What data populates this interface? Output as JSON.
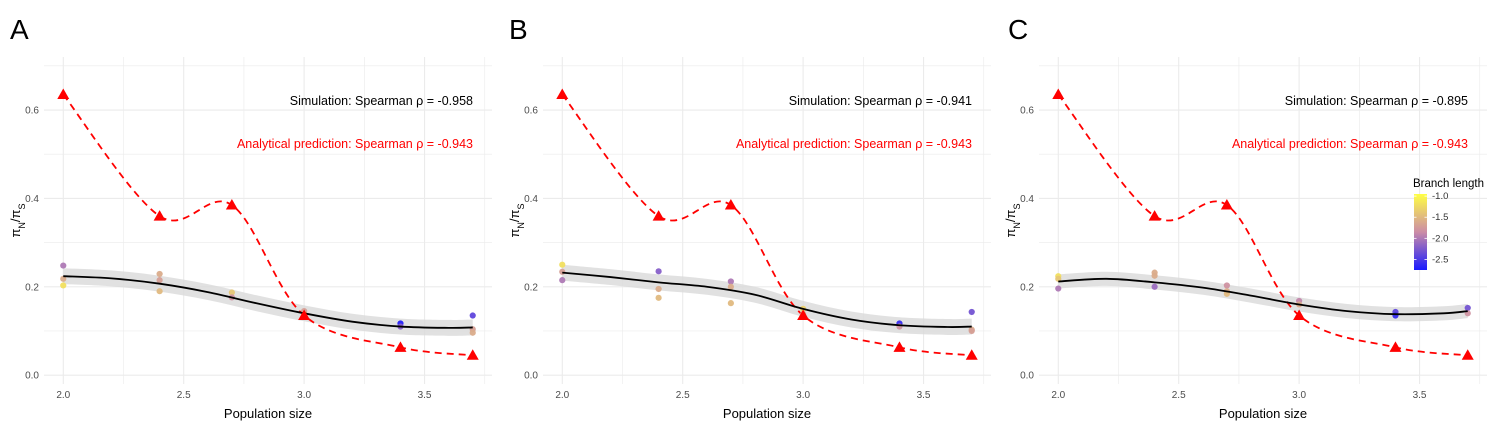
{
  "chart_data": [
    {
      "panel_label": "A",
      "type": "scatter",
      "xlabel": "Population size",
      "ylabel_main": "π",
      "ylabel_sub_n": "N",
      "ylabel_sep": "/",
      "ylabel_sub_s": "S",
      "xlim": [
        1.92,
        3.78
      ],
      "ylim": [
        -0.02,
        0.72
      ],
      "x_ticks": [
        "2.0",
        "2.5",
        "3.0",
        "3.5"
      ],
      "y_ticks": [
        "0.0",
        "0.2",
        "0.4",
        "0.6"
      ],
      "grid": true,
      "annotation_simulation": "Simulation: Spearman ρ = -0.958",
      "annotation_analytical": "Analytical prediction: Spearman ρ = -0.943",
      "points": [
        {
          "x": 2.0,
          "y": 0.248,
          "branch_length": -2.0
        },
        {
          "x": 2.0,
          "y": 0.218,
          "branch_length": -1.6
        },
        {
          "x": 2.0,
          "y": 0.203,
          "branch_length": -1.2
        },
        {
          "x": 2.4,
          "y": 0.229,
          "branch_length": -1.6
        },
        {
          "x": 2.4,
          "y": 0.215,
          "branch_length": -1.7
        },
        {
          "x": 2.4,
          "y": 0.19,
          "branch_length": -1.5
        },
        {
          "x": 2.7,
          "y": 0.187,
          "branch_length": -1.4
        },
        {
          "x": 2.7,
          "y": 0.176,
          "branch_length": -1.8
        },
        {
          "x": 3.0,
          "y": 0.145,
          "branch_length": -1.7
        },
        {
          "x": 3.0,
          "y": 0.138,
          "branch_length": -1.4
        },
        {
          "x": 3.4,
          "y": 0.117,
          "branch_length": -2.7
        },
        {
          "x": 3.4,
          "y": 0.11,
          "branch_length": -2.2
        },
        {
          "x": 3.7,
          "y": 0.135,
          "branch_length": -2.4
        },
        {
          "x": 3.7,
          "y": 0.104,
          "branch_length": -1.7
        },
        {
          "x": 3.7,
          "y": 0.096,
          "branch_length": -1.6
        }
      ],
      "smooth_fit": {
        "x": [
          2.0,
          2.2,
          2.4,
          2.6,
          2.8,
          3.0,
          3.2,
          3.4,
          3.6,
          3.7
        ],
        "y": [
          0.224,
          0.219,
          0.207,
          0.188,
          0.163,
          0.14,
          0.121,
          0.11,
          0.107,
          0.108
        ],
        "ci_halfwidth": 0.018
      },
      "analytical": {
        "x": [
          2.0,
          2.4,
          2.7,
          3.0,
          3.4,
          3.7
        ],
        "y": [
          0.635,
          0.36,
          0.385,
          0.135,
          0.063,
          0.045
        ]
      }
    },
    {
      "panel_label": "B",
      "type": "scatter",
      "xlabel": "Population size",
      "ylabel_main": "π",
      "ylabel_sub_n": "N",
      "ylabel_sep": "/",
      "ylabel_sub_s": "S",
      "xlim": [
        1.92,
        3.78
      ],
      "ylim": [
        -0.02,
        0.72
      ],
      "x_ticks": [
        "2.0",
        "2.5",
        "3.0",
        "3.5"
      ],
      "y_ticks": [
        "0.0",
        "0.2",
        "0.4",
        "0.6"
      ],
      "grid": true,
      "annotation_simulation": "Simulation: Spearman ρ = -0.941",
      "annotation_analytical": "Analytical prediction: Spearman ρ = -0.943",
      "points": [
        {
          "x": 2.0,
          "y": 0.25,
          "branch_length": -1.2
        },
        {
          "x": 2.0,
          "y": 0.234,
          "branch_length": -1.7
        },
        {
          "x": 2.0,
          "y": 0.215,
          "branch_length": -2.0
        },
        {
          "x": 2.4,
          "y": 0.235,
          "branch_length": -2.2
        },
        {
          "x": 2.4,
          "y": 0.195,
          "branch_length": -1.6
        },
        {
          "x": 2.4,
          "y": 0.175,
          "branch_length": -1.5
        },
        {
          "x": 2.7,
          "y": 0.212,
          "branch_length": -2.0
        },
        {
          "x": 2.7,
          "y": 0.2,
          "branch_length": -1.6
        },
        {
          "x": 2.7,
          "y": 0.163,
          "branch_length": -1.5
        },
        {
          "x": 3.0,
          "y": 0.15,
          "branch_length": -1.3
        },
        {
          "x": 3.0,
          "y": 0.138,
          "branch_length": -1.7
        },
        {
          "x": 3.4,
          "y": 0.117,
          "branch_length": -2.6
        },
        {
          "x": 3.4,
          "y": 0.11,
          "branch_length": -1.8
        },
        {
          "x": 3.7,
          "y": 0.143,
          "branch_length": -2.3
        },
        {
          "x": 3.7,
          "y": 0.103,
          "branch_length": -1.6
        },
        {
          "x": 3.7,
          "y": 0.1,
          "branch_length": -1.7
        }
      ],
      "smooth_fit": {
        "x": [
          2.0,
          2.2,
          2.4,
          2.6,
          2.8,
          3.0,
          3.2,
          3.4,
          3.6,
          3.7
        ],
        "y": [
          0.232,
          0.222,
          0.21,
          0.2,
          0.182,
          0.15,
          0.126,
          0.113,
          0.109,
          0.11
        ],
        "ci_halfwidth": 0.018
      },
      "analytical": {
        "x": [
          2.0,
          2.4,
          2.7,
          3.0,
          3.4,
          3.7
        ],
        "y": [
          0.635,
          0.36,
          0.385,
          0.135,
          0.063,
          0.045
        ]
      }
    },
    {
      "panel_label": "C",
      "type": "scatter",
      "xlabel": "Population size",
      "ylabel_main": "π",
      "ylabel_sub_n": "N",
      "ylabel_sep": "/",
      "ylabel_sub_s": "S",
      "xlim": [
        1.92,
        3.78
      ],
      "ylim": [
        -0.02,
        0.72
      ],
      "x_ticks": [
        "2.0",
        "2.5",
        "3.0",
        "3.5"
      ],
      "y_ticks": [
        "0.0",
        "0.2",
        "0.4",
        "0.6"
      ],
      "grid": true,
      "annotation_simulation": "Simulation: Spearman ρ = -0.895",
      "annotation_analytical": "Analytical prediction: Spearman ρ = -0.943",
      "points": [
        {
          "x": 2.0,
          "y": 0.224,
          "branch_length": -1.2
        },
        {
          "x": 2.0,
          "y": 0.218,
          "branch_length": -1.4
        },
        {
          "x": 2.0,
          "y": 0.196,
          "branch_length": -2.0
        },
        {
          "x": 2.4,
          "y": 0.232,
          "branch_length": -1.6
        },
        {
          "x": 2.4,
          "y": 0.225,
          "branch_length": -1.6
        },
        {
          "x": 2.4,
          "y": 0.2,
          "branch_length": -2.1
        },
        {
          "x": 2.7,
          "y": 0.203,
          "branch_length": -1.8
        },
        {
          "x": 2.7,
          "y": 0.19,
          "branch_length": -1.6
        },
        {
          "x": 2.7,
          "y": 0.184,
          "branch_length": -1.5
        },
        {
          "x": 3.0,
          "y": 0.168,
          "branch_length": -1.9
        },
        {
          "x": 3.0,
          "y": 0.16,
          "branch_length": -1.6
        },
        {
          "x": 3.4,
          "y": 0.143,
          "branch_length": -2.4
        },
        {
          "x": 3.4,
          "y": 0.135,
          "branch_length": -2.6
        },
        {
          "x": 3.7,
          "y": 0.152,
          "branch_length": -2.3
        },
        {
          "x": 3.7,
          "y": 0.14,
          "branch_length": -1.8
        }
      ],
      "smooth_fit": {
        "x": [
          2.0,
          2.2,
          2.4,
          2.6,
          2.8,
          3.0,
          3.2,
          3.4,
          3.6,
          3.7
        ],
        "y": [
          0.212,
          0.218,
          0.21,
          0.198,
          0.18,
          0.16,
          0.145,
          0.138,
          0.14,
          0.145
        ],
        "ci_halfwidth": 0.016
      },
      "analytical": {
        "x": [
          2.0,
          2.4,
          2.7,
          3.0,
          3.4,
          3.7
        ],
        "y": [
          0.635,
          0.36,
          0.385,
          0.135,
          0.063,
          0.045
        ]
      }
    }
  ],
  "legend": {
    "title": "Branch length",
    "range": [
      -2.75,
      -0.95
    ],
    "ticks": [
      "-1.0",
      "-1.5",
      "-2.0",
      "-2.5"
    ],
    "tick_values": [
      -1.0,
      -1.5,
      -2.0,
      -2.5
    ],
    "colors": [
      "#ffff44",
      "#cc8ca6",
      "#1a1aff"
    ]
  },
  "colors": {
    "analytical": "#ff0000",
    "fit_line": "#000000",
    "ci_band": "#d9d9d9",
    "grid": "#ebebeb"
  }
}
